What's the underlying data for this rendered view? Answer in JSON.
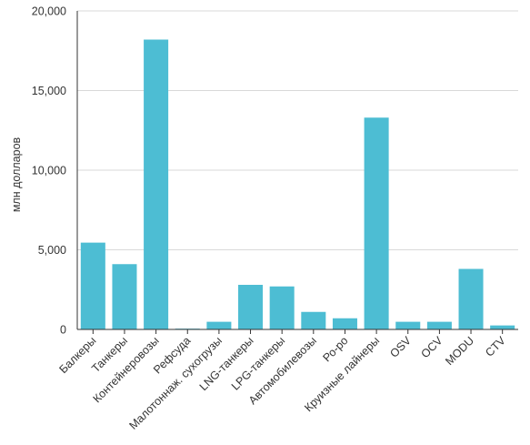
{
  "chart_data": {
    "type": "bar",
    "categories": [
      "Балкеры",
      "Танкеры",
      "Контейнеровозы",
      "Рефсуда",
      "Малотоннаж. сухогрузы",
      "LNG-танкеры",
      "LPG-танкеры",
      "Автомобилевозы",
      "Ро-ро",
      "Круизные лайнеры",
      "OSV",
      "OCV",
      "MODU",
      "CTV"
    ],
    "values": [
      5450,
      4100,
      18200,
      50,
      480,
      2800,
      2700,
      1100,
      700,
      13300,
      480,
      480,
      3800,
      250
    ],
    "ylabel": "млн долларов",
    "ylim": [
      0,
      20000
    ],
    "yticks": [
      0,
      5000,
      10000,
      15000,
      20000
    ],
    "ytick_labels": [
      "0",
      "5,000",
      "10,000",
      "15,000",
      "20,000"
    ],
    "grid": true,
    "bar_color": "#4dbdd3"
  }
}
